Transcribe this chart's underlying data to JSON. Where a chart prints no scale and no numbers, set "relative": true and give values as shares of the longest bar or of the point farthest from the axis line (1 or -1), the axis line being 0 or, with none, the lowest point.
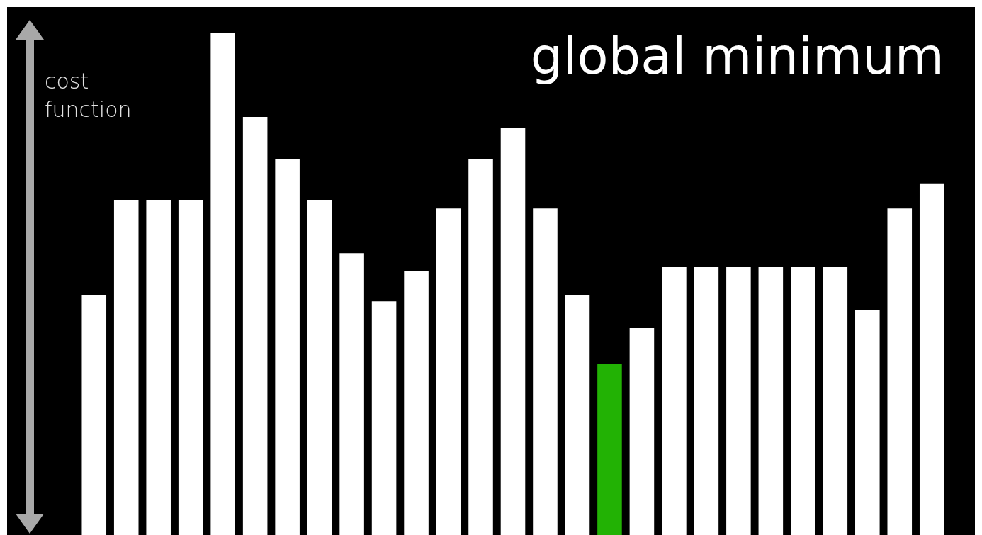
{
  "chart_data": {
    "type": "bar",
    "title": "global minimum",
    "ylabel": "cost function",
    "relative": true,
    "categories": [
      null,
      null,
      null,
      null,
      null,
      null,
      null,
      null,
      null,
      null,
      null,
      null,
      null,
      null,
      null,
      null,
      null,
      null,
      null,
      null,
      null,
      null,
      null,
      null,
      null,
      null,
      null
    ],
    "values": [
      0.477,
      0.667,
      0.667,
      0.667,
      1,
      0.832,
      0.749,
      0.667,
      0.561,
      0.465,
      0.526,
      0.65,
      0.749,
      0.811,
      0.65,
      0.477,
      0.341,
      0.412,
      0.533,
      0.533,
      0.533,
      0.533,
      0.533,
      0.533,
      0.447,
      0.65,
      0.7
    ],
    "colors": [
      "#ffffff",
      "#ffffff",
      "#ffffff",
      "#ffffff",
      "#ffffff",
      "#ffffff",
      "#ffffff",
      "#ffffff",
      "#ffffff",
      "#ffffff",
      "#ffffff",
      "#ffffff",
      "#ffffff",
      "#ffffff",
      "#ffffff",
      "#ffffff",
      "#22b204",
      "#ffffff",
      "#ffffff",
      "#ffffff",
      "#ffffff",
      "#ffffff",
      "#ffffff",
      "#ffffff",
      "#ffffff",
      "#ffffff",
      "#ffffff"
    ],
    "data_labels": false
  }
}
